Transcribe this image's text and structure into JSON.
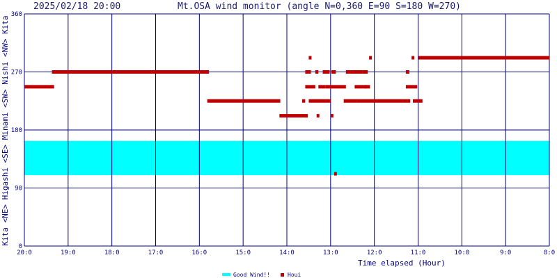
{
  "header": {
    "timestamp": "2025/02/18 20:00",
    "title": "Mt.OSA wind monitor (angle N=0,360 E=90 S=180 W=270)"
  },
  "chart_data": {
    "type": "scatter",
    "title": "Mt.OSA wind monitor (angle N=0,360 E=90 S=180 W=270)",
    "xlabel": "Time elapsed (Hour)",
    "ylabel": "Kita <NE> Higashi <SE> Minami <SW> Nishi <NW> Kita",
    "x_ticks": [
      "20:0",
      "19:0",
      "18:0",
      "17:0",
      "16:0",
      "15:0",
      "14:0",
      "13:0",
      "12:0",
      "11:0",
      "10:0",
      "9:0",
      "8:0"
    ],
    "x_range_hours_elapsed": [
      0,
      12
    ],
    "y_ticks": [
      0,
      90,
      180,
      270,
      360
    ],
    "ylim": [
      0,
      360
    ],
    "grid": true,
    "good_wind_band": {
      "from": 110,
      "to": 163,
      "color": "#00ffff",
      "label": "Good Wind!!"
    },
    "series": [
      {
        "name": "Houi",
        "color": "#c00000",
        "segments": [
          {
            "x0": 0.0,
            "x1": 0.68,
            "y": 247
          },
          {
            "x0": 0.63,
            "x1": 4.22,
            "y": 270
          },
          {
            "x0": 4.18,
            "x1": 5.85,
            "y": 225
          },
          {
            "x0": 5.83,
            "x1": 6.48,
            "y": 202
          },
          {
            "x0": 6.35,
            "x1": 6.42,
            "y": 225
          },
          {
            "x0": 6.42,
            "x1": 6.65,
            "y": 247
          },
          {
            "x0": 6.42,
            "x1": 6.55,
            "y": 270
          },
          {
            "x0": 6.5,
            "x1": 6.55,
            "y": 292
          },
          {
            "x0": 6.5,
            "x1": 7.0,
            "y": 225
          },
          {
            "x0": 6.65,
            "x1": 6.72,
            "y": 270
          },
          {
            "x0": 6.68,
            "x1": 6.73,
            "y": 202
          },
          {
            "x0": 6.72,
            "x1": 6.88,
            "y": 247
          },
          {
            "x0": 6.82,
            "x1": 6.98,
            "y": 270
          },
          {
            "x0": 6.88,
            "x1": 7.35,
            "y": 247
          },
          {
            "x0": 7.0,
            "x1": 7.05,
            "y": 202
          },
          {
            "x0": 7.02,
            "x1": 7.12,
            "y": 270
          },
          {
            "x0": 7.08,
            "x1": 7.12,
            "y": 112
          },
          {
            "x0": 7.3,
            "x1": 7.6,
            "y": 225
          },
          {
            "x0": 7.35,
            "x1": 7.72,
            "y": 270
          },
          {
            "x0": 7.55,
            "x1": 7.82,
            "y": 247
          },
          {
            "x0": 7.72,
            "x1": 7.85,
            "y": 270
          },
          {
            "x0": 7.78,
            "x1": 7.9,
            "y": 247
          },
          {
            "x0": 7.88,
            "x1": 7.93,
            "y": 292
          },
          {
            "x0": 7.6,
            "x1": 8.82,
            "y": 225
          },
          {
            "x0": 8.72,
            "x1": 8.8,
            "y": 270
          },
          {
            "x0": 8.72,
            "x1": 8.98,
            "y": 247
          },
          {
            "x0": 8.85,
            "x1": 8.9,
            "y": 292
          },
          {
            "x0": 8.88,
            "x1": 9.1,
            "y": 225
          },
          {
            "x0": 9.0,
            "x1": 12.0,
            "y": 292
          }
        ]
      }
    ],
    "legend": [
      "Good Wind!!",
      "Houi"
    ],
    "legend_position": "bottom-center"
  }
}
